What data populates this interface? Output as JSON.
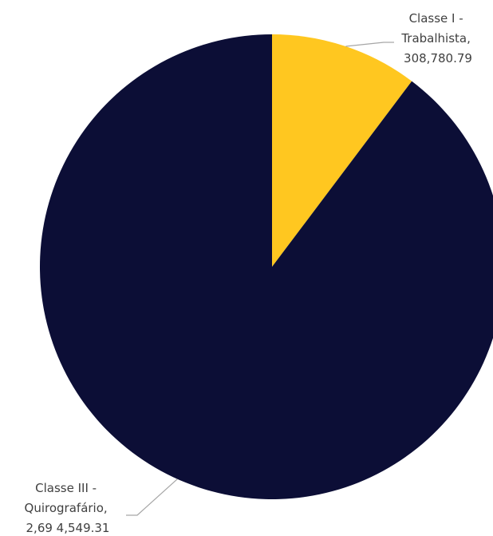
{
  "chart_data": {
    "type": "pie",
    "title": "",
    "slices": [
      {
        "label_lines": [
          "Classe I -",
          "Trabalhista,",
          "308,780.79"
        ],
        "value": 308780.79,
        "color": "#ffc720"
      },
      {
        "label_lines": [
          "Classe III -",
          "Quirografário,",
          "2,69 4,549.31"
        ],
        "value": 2694549.31,
        "color": "#0c0e36"
      }
    ],
    "legend": "none",
    "start_angle": "12 o'clock, clockwise"
  }
}
